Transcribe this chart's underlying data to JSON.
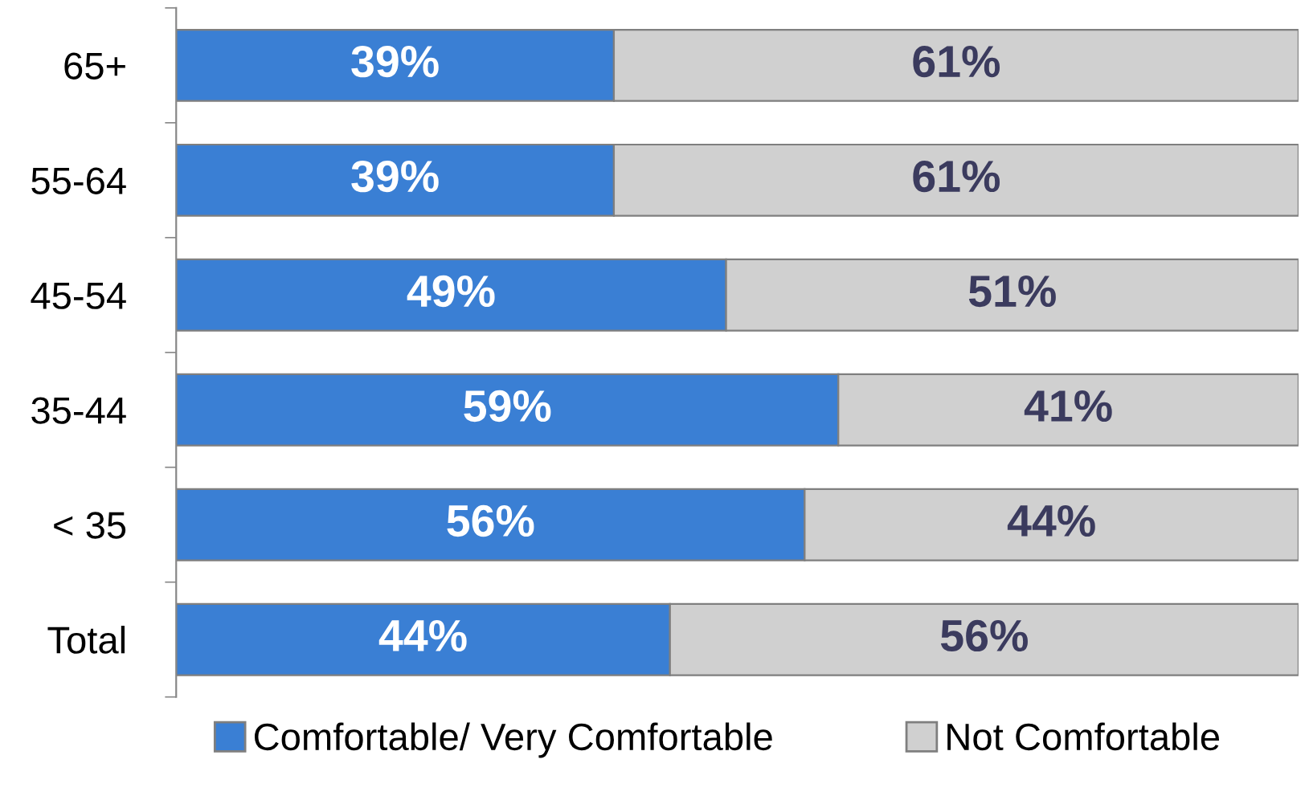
{
  "chart_data": {
    "type": "bar",
    "orientation": "horizontal",
    "stacked": true,
    "legend": "bottom",
    "categories": [
      "65+",
      "55-64",
      "45-54",
      "35-44",
      "< 35",
      "Total"
    ],
    "series": [
      {
        "name": "Comfortable/ Very Comfortable",
        "color": "#3a7fd4",
        "values": [
          39,
          39,
          49,
          59,
          56,
          44
        ],
        "value_labels": [
          "39%",
          "39%",
          "49%",
          "59%",
          "56%",
          "44%"
        ]
      },
      {
        "name": "Not Comfortable",
        "color": "#d0d0d0",
        "values": [
          61,
          61,
          51,
          41,
          44,
          56
        ],
        "value_labels": [
          "61%",
          "61%",
          "51%",
          "41%",
          "44%",
          "56%"
        ]
      }
    ]
  }
}
